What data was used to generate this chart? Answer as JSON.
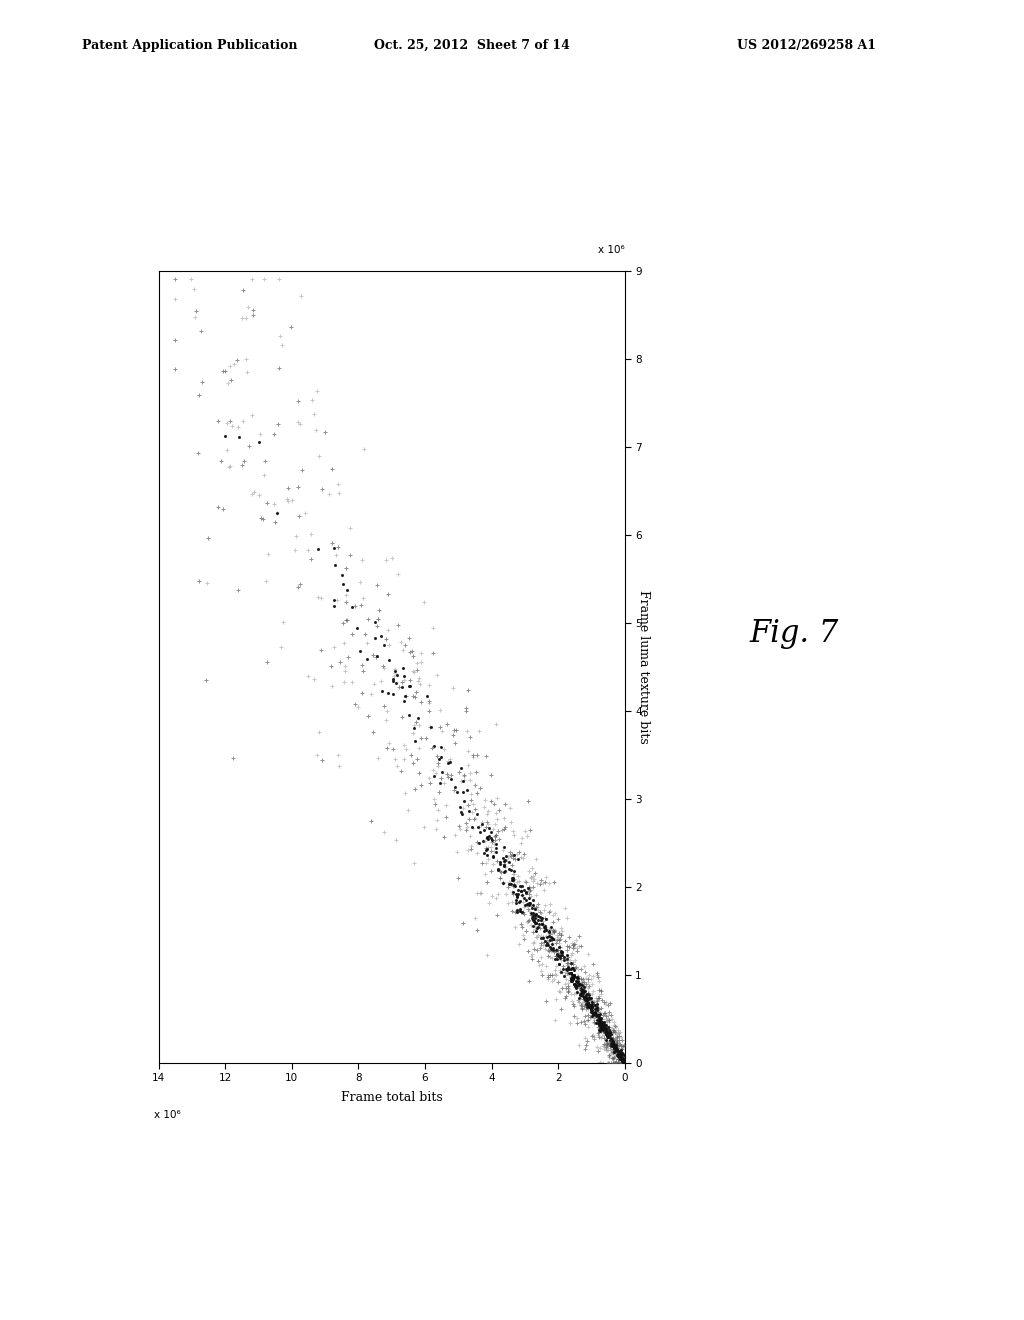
{
  "header_left": "Patent Application Publication",
  "header_center": "Oct. 25, 2012  Sheet 7 of 14",
  "header_right": "US 2012/269258 A1",
  "fig_label": "Fig. 7",
  "xlabel": "Frame total bits",
  "ylabel": "Frame luma texture bits",
  "x_scale_label": "x 10⁶",
  "y_scale_label": "x 10⁶",
  "x_ticks": [
    0,
    2,
    4,
    6,
    8,
    10,
    12,
    14
  ],
  "y_ticks": [
    0,
    1,
    2,
    3,
    4,
    5,
    6,
    7,
    8,
    9
  ],
  "x_max": 14,
  "y_max": 9,
  "background_color": "#ffffff",
  "seed": 42,
  "rotation_deg": 45
}
